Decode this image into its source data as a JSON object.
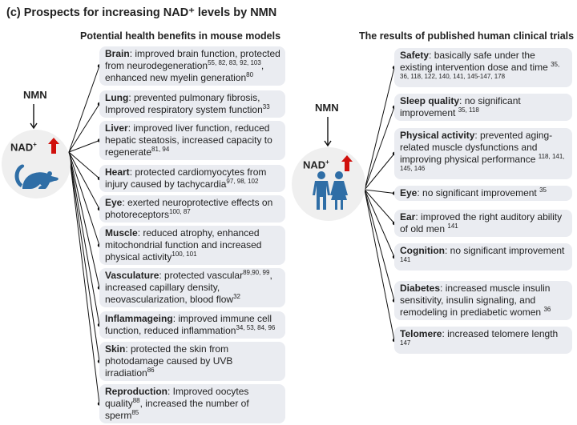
{
  "title": "(c) Prospects for increasing NAD⁺ levels by NMN",
  "left": {
    "heading": "Potential health benefits in mouse models",
    "nmn": "NMN",
    "nad": "NAD",
    "nad_sup": "+",
    "icon": "mouse-icon",
    "items": [
      {
        "title": "Brain",
        "body": [
          {
            "t": ": improved brain function, protected from neurodegeneration"
          },
          {
            "s": "55, 82, 83, 92, 103"
          },
          {
            "t": ", enhanced new myelin generation"
          },
          {
            "s": "80"
          }
        ]
      },
      {
        "title": "Lung",
        "body": [
          {
            "t": ": prevented pulmonary fibrosis, Improved respiratory system function"
          },
          {
            "s": "33"
          }
        ]
      },
      {
        "title": "Liver",
        "body": [
          {
            "t": ": improved liver function, reduced hepatic steatosis, increased capacity to regenerate"
          },
          {
            "s": "81, 94"
          }
        ]
      },
      {
        "title": "Heart",
        "body": [
          {
            "t": ": protected cardiomyocytes from injury caused by tachycardia"
          },
          {
            "s": "97, 98, 102"
          }
        ]
      },
      {
        "title": "Eye",
        "body": [
          {
            "t": ": exerted neuroprotective effects on photoreceptors"
          },
          {
            "s": "100, 87"
          }
        ]
      },
      {
        "title": "Muscle",
        "body": [
          {
            "t": ": reduced atrophy, enhanced mitochondrial function and increased physical activity"
          },
          {
            "s": "100, 101"
          }
        ]
      },
      {
        "title": "Vasculature",
        "body": [
          {
            "t": ": protected vascular"
          },
          {
            "s": "89,90, 99"
          },
          {
            "t": ", increased capillary density, neovascularization, blood flow"
          },
          {
            "s": "32"
          }
        ]
      },
      {
        "title": "Inflammageing",
        "body": [
          {
            "t": ": improved immune cell function, reduced inflammation"
          },
          {
            "s": "34, 53, 84, 96"
          }
        ]
      },
      {
        "title": "Skin",
        "body": [
          {
            "t": ": protected the skin from photodamage caused by UVB irradiation"
          },
          {
            "s": "86"
          }
        ]
      },
      {
        "title": "Reproduction",
        "body": [
          {
            "t": ": Improved oocytes quality"
          },
          {
            "s": "88"
          },
          {
            "t": ", increased the number of sperm"
          },
          {
            "s": "85"
          }
        ]
      }
    ]
  },
  "right": {
    "heading": "The results of published human clinical trials",
    "nmn": "NMN",
    "nad": "NAD",
    "nad_sup": "+",
    "icon": "people-icon",
    "items": [
      {
        "title": "Safety",
        "body": [
          {
            "t": ": basically safe under the existing intervention dose and time "
          },
          {
            "s": "35, 36, 118, 122, 140, 141, 145-147, 178"
          }
        ]
      },
      {
        "title": "Sleep quality",
        "body": [
          {
            "t": ": no significant improvement "
          },
          {
            "s": "35, 118"
          }
        ]
      },
      {
        "title": "Physical activity",
        "body": [
          {
            "t": ": prevented aging-related muscle dysfunctions and improving physical performance "
          },
          {
            "s": "118, 141, 145, 146"
          }
        ]
      },
      {
        "title": "Eye",
        "body": [
          {
            "t": ": no significant improvement "
          },
          {
            "s": "35"
          }
        ]
      },
      {
        "title": "Ear",
        "body": [
          {
            "t": ": improved the right auditory ability of old men "
          },
          {
            "s": "141"
          }
        ]
      },
      {
        "title": "Cognition",
        "body": [
          {
            "t": ": no significant improvement "
          },
          {
            "s": "141"
          }
        ]
      },
      {
        "title": "Diabetes",
        "body": [
          {
            "t": ": increased muscle insulin sensitivity, insulin signaling, and remodeling in prediabetic women "
          },
          {
            "s": "36"
          }
        ]
      },
      {
        "title": "Telomere",
        "body": [
          {
            "t": ": increased telomere length "
          },
          {
            "s": "147"
          }
        ]
      }
    ]
  },
  "colors": {
    "box": "#eaecf1",
    "icon": "#2f6ea6",
    "arrow_up": "#d0100c"
  }
}
